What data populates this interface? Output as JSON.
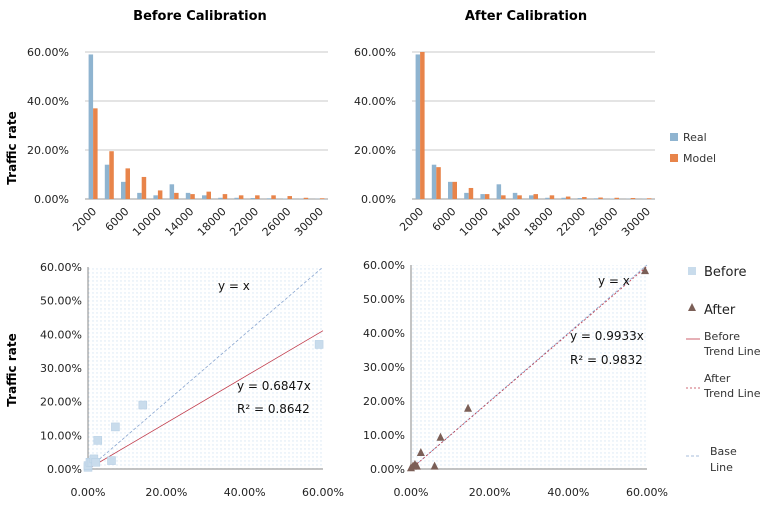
{
  "chart_data": [
    {
      "type": "bar",
      "title": "Before Calibration",
      "ylabel": "Traffic rate",
      "xlabel": "",
      "ylim": [
        0,
        0.6
      ],
      "y_ticks": [
        "0.00%",
        "20.00%",
        "40.00%",
        "60.00%"
      ],
      "categories": [
        "2000",
        "4000",
        "6000",
        "8000",
        "10000",
        "12000",
        "14000",
        "16000",
        "18000",
        "20000",
        "22000",
        "24000",
        "26000",
        "28000",
        "30000"
      ],
      "x_tick_labels": [
        "2000",
        "6000",
        "10000",
        "14000",
        "18000",
        "22000",
        "26000",
        "30000"
      ],
      "series": [
        {
          "name": "Real",
          "color": "#8fb4d0",
          "values": [
            0.59,
            0.14,
            0.07,
            0.025,
            0.015,
            0.06,
            0.025,
            0.015,
            0.005,
            0.005,
            0.004,
            0.003,
            0.002,
            0.001,
            0.001
          ]
        },
        {
          "name": "Model",
          "color": "#e8844a",
          "values": [
            0.37,
            0.195,
            0.125,
            0.09,
            0.035,
            0.025,
            0.02,
            0.03,
            0.02,
            0.015,
            0.015,
            0.015,
            0.012,
            0.005,
            0.003
          ]
        }
      ]
    },
    {
      "type": "bar",
      "title": "After Calibration",
      "ylabel": "",
      "xlabel": "",
      "ylim": [
        0,
        0.6
      ],
      "y_ticks": [
        "0.00%",
        "20.00%",
        "40.00%",
        "60.00%"
      ],
      "categories": [
        "2000",
        "4000",
        "6000",
        "8000",
        "10000",
        "12000",
        "14000",
        "16000",
        "18000",
        "20000",
        "22000",
        "24000",
        "26000",
        "28000",
        "30000"
      ],
      "x_tick_labels": [
        "2000",
        "6000",
        "10000",
        "14000",
        "18000",
        "22000",
        "26000",
        "30000"
      ],
      "legend": [
        "Real",
        "Model"
      ],
      "series": [
        {
          "name": "Real",
          "color": "#8fb4d0",
          "values": [
            0.59,
            0.14,
            0.07,
            0.025,
            0.02,
            0.06,
            0.025,
            0.015,
            0.005,
            0.005,
            0.004,
            0.003,
            0.002,
            0.001,
            0.001
          ]
        },
        {
          "name": "Model",
          "color": "#e8844a",
          "values": [
            0.6,
            0.13,
            0.07,
            0.045,
            0.02,
            0.015,
            0.015,
            0.02,
            0.015,
            0.01,
            0.008,
            0.006,
            0.005,
            0.004,
            0.003
          ]
        }
      ]
    },
    {
      "type": "scatter",
      "ylabel": "Traffic rate",
      "xlim": [
        0,
        0.6
      ],
      "ylim": [
        0,
        0.6
      ],
      "x_ticks": [
        "0.00%",
        "20.00%",
        "40.00%",
        "60.00%"
      ],
      "y_ticks": [
        "0.00%",
        "10.00%",
        "20.00%",
        "30.00%",
        "40.00%",
        "50.00%",
        "60.00%"
      ],
      "points": [
        [
          0.0,
          0.005
        ],
        [
          0.0,
          0.01
        ],
        [
          0.005,
          0.02
        ],
        [
          0.01,
          0.02
        ],
        [
          0.015,
          0.03
        ],
        [
          0.02,
          0.02
        ],
        [
          0.025,
          0.085
        ],
        [
          0.06,
          0.025
        ],
        [
          0.07,
          0.125
        ],
        [
          0.14,
          0.19
        ],
        [
          0.59,
          0.37
        ]
      ],
      "annotations": {
        "base": "y = x",
        "equation": "y = 0.6847x",
        "r2": "R² = 0.8642"
      },
      "trend_slope": 0.6847
    },
    {
      "type": "scatter",
      "xlim": [
        0,
        0.6
      ],
      "ylim": [
        0,
        0.6
      ],
      "x_ticks": [
        "0.00%",
        "20.00%",
        "40.00%",
        "60.00%"
      ],
      "y_ticks": [
        "0.00%",
        "10.00%",
        "20.00%",
        "30.00%",
        "40.00%",
        "50.00%",
        "60.00%"
      ],
      "points": [
        [
          0.0,
          0.005
        ],
        [
          0.005,
          0.01
        ],
        [
          0.01,
          0.015
        ],
        [
          0.015,
          0.01
        ],
        [
          0.025,
          0.05
        ],
        [
          0.06,
          0.01
        ],
        [
          0.075,
          0.095
        ],
        [
          0.145,
          0.18
        ],
        [
          0.595,
          0.585
        ]
      ],
      "annotations": {
        "base": "y = x",
        "equation": "y = 0.9933x",
        "r2": "R² = 0.9832"
      },
      "trend_slope": 0.9933,
      "legend": [
        "Before",
        "After",
        "Before Trend Line",
        "After Trend Line",
        "Base Line"
      ]
    }
  ],
  "labels": {
    "title_before": "Before Calibration",
    "title_after": "After Calibration",
    "ylabel_top": "Traffic rate",
    "ylabel_bottom": "Traffic rate",
    "legend_real": "Real",
    "legend_model": "Model",
    "legend_before": "Before",
    "legend_after": "After",
    "legend_before_trend_1": "Before",
    "legend_before_trend_2": "Trend Line",
    "legend_after_trend_1": "After",
    "legend_after_trend_2": "Trend Line",
    "legend_base_1": "Base",
    "legend_base_2": "Line"
  },
  "colors": {
    "real": "#8fb4d0",
    "model": "#e8844a",
    "before_marker": "#c9dcec",
    "after_marker": "#7b5f57",
    "before_trend": "#c03a4a",
    "after_trend": "#c03a4a",
    "base_line": "#8aa6d0",
    "plot_bg_dots": "#d6e6f4"
  }
}
